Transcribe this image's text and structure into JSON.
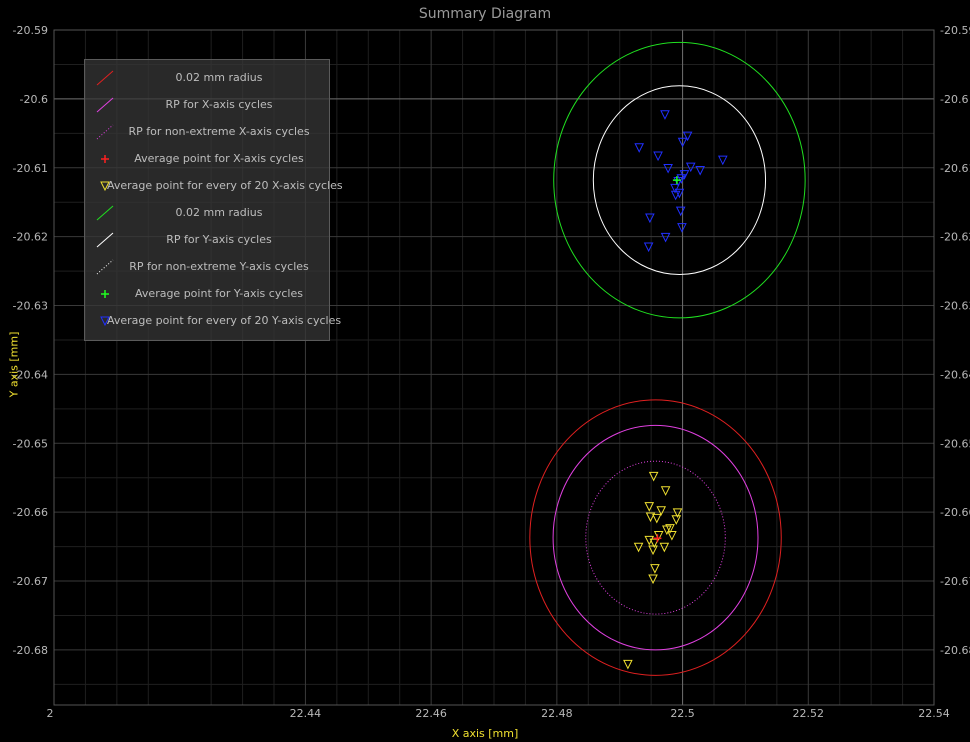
{
  "chart_data": {
    "type": "scatter",
    "title": "Summary Diagram",
    "xlabel": "X axis [mm]",
    "ylabel": "Y axis [mm]",
    "xlim": [
      22.4,
      22.54
    ],
    "ylim": [
      -20.688,
      -20.59
    ],
    "x_tick_labels": [
      "22.44",
      "22.46",
      "22.48",
      "22.5",
      "22.52",
      "22.54"
    ],
    "x_tick_values": [
      22.44,
      22.46,
      22.48,
      22.5,
      22.52,
      22.54
    ],
    "x_edge_label": "2",
    "y_tick_labels": [
      "-20.59",
      "-20.6",
      "-20.61",
      "-20.62",
      "-20.63",
      "-20.64",
      "-20.65",
      "-20.66",
      "-20.67",
      "-20.68"
    ],
    "y_tick_values": [
      -20.59,
      -20.6,
      -20.61,
      -20.62,
      -20.63,
      -20.64,
      -20.65,
      -20.66,
      -20.67,
      -20.68
    ],
    "grid": true,
    "legend_position": "top-left",
    "legend": [
      {
        "label": "0.02 mm radius",
        "symbol": "line",
        "color": "#e02020"
      },
      {
        "label": "RP for X-axis cycles",
        "symbol": "line",
        "color": "#e040e0"
      },
      {
        "label": "RP for non-extreme X-axis cycles",
        "symbol": "dotted",
        "color": "#e040e0"
      },
      {
        "label": "Average point for X-axis cycles",
        "symbol": "plus",
        "color": "#ff2020"
      },
      {
        "label": "Average point for every of 20 X-axis cycles",
        "symbol": "triangle",
        "color": "#f0e030"
      },
      {
        "label": "0.02 mm radius",
        "symbol": "line",
        "color": "#20e020"
      },
      {
        "label": "RP for Y-axis cycles",
        "symbol": "line",
        "color": "#ffffff"
      },
      {
        "label": "RP for non-extreme Y-axis cycles",
        "symbol": "dotted",
        "color": "#ffffff"
      },
      {
        "label": "Average point for Y-axis cycles",
        "symbol": "plus",
        "color": "#20ff20"
      },
      {
        "label": "Average point for every of 20 Y-axis cycles",
        "symbol": "triangle",
        "color": "#2030ff"
      }
    ],
    "series": [
      {
        "name": "Average point for every of 20 X-axis cycles",
        "marker": "triangle",
        "color": "#f0e030",
        "x": [
          22.4954,
          22.4973,
          22.4947,
          22.4966,
          22.4992,
          22.4949,
          22.4959,
          22.499,
          22.498,
          22.4975,
          22.4962,
          22.4983,
          22.4947,
          22.4955,
          22.493,
          22.4971,
          22.4953,
          22.4956,
          22.4953,
          22.4913
        ],
        "y": [
          -20.6548,
          -20.6569,
          -20.6592,
          -20.6598,
          -20.6601,
          -20.6607,
          -20.6609,
          -20.6611,
          -20.6624,
          -20.6626,
          -20.6634,
          -20.6634,
          -20.6641,
          -20.6645,
          -20.6651,
          -20.6651,
          -20.6655,
          -20.6682,
          -20.6697,
          -20.6821
        ]
      },
      {
        "name": "Average point for every of 20 Y-axis cycles",
        "marker": "triangle",
        "color": "#2030ff",
        "x": [
          22.4972,
          22.5008,
          22.5,
          22.4931,
          22.4961,
          22.5064,
          22.5013,
          22.4977,
          22.5028,
          22.5003,
          22.4998,
          22.4993,
          22.4988,
          22.4995,
          22.4989,
          22.4997,
          22.4948,
          22.4999,
          22.4973,
          22.4946
        ],
        "y": [
          -20.6023,
          -20.6054,
          -20.6063,
          -20.6071,
          -20.6083,
          -20.6089,
          -20.6099,
          -20.6101,
          -20.6104,
          -20.611,
          -20.6116,
          -20.612,
          -20.613,
          -20.6137,
          -20.614,
          -20.6163,
          -20.6173,
          -20.6187,
          -20.6201,
          -20.6215
        ]
      }
    ],
    "averages": [
      {
        "name": "Average point for X-axis cycles",
        "x": 22.496,
        "y": -20.6638,
        "marker": "plus",
        "color": "#ff2020"
      },
      {
        "name": "Average point for Y-axis cycles",
        "x": 22.4991,
        "y": -20.6118,
        "marker": "plus",
        "color": "#20ff20"
      }
    ],
    "circles": [
      {
        "name": "0.02 mm radius (X)",
        "cx": 22.4957,
        "cy": -20.6637,
        "radius": 0.02,
        "color": "#e02020",
        "style": "solid"
      },
      {
        "name": "RP for X-axis cycles",
        "cx": 22.4957,
        "cy": -20.6637,
        "radius": 0.0163,
        "color": "#e040e0",
        "style": "solid"
      },
      {
        "name": "RP for non-extreme X-axis cycles",
        "cx": 22.4957,
        "cy": -20.6637,
        "radius": 0.0111,
        "color": "#e040e0",
        "style": "dotted"
      },
      {
        "name": "0.02 mm radius (Y)",
        "cx": 22.4995,
        "cy": -20.6118,
        "radius": 0.02,
        "color": "#20e020",
        "style": "solid"
      },
      {
        "name": "RP for Y-axis cycles",
        "cx": 22.4995,
        "cy": -20.6118,
        "radius": 0.0137,
        "color": "#ffffff",
        "style": "solid"
      }
    ]
  }
}
